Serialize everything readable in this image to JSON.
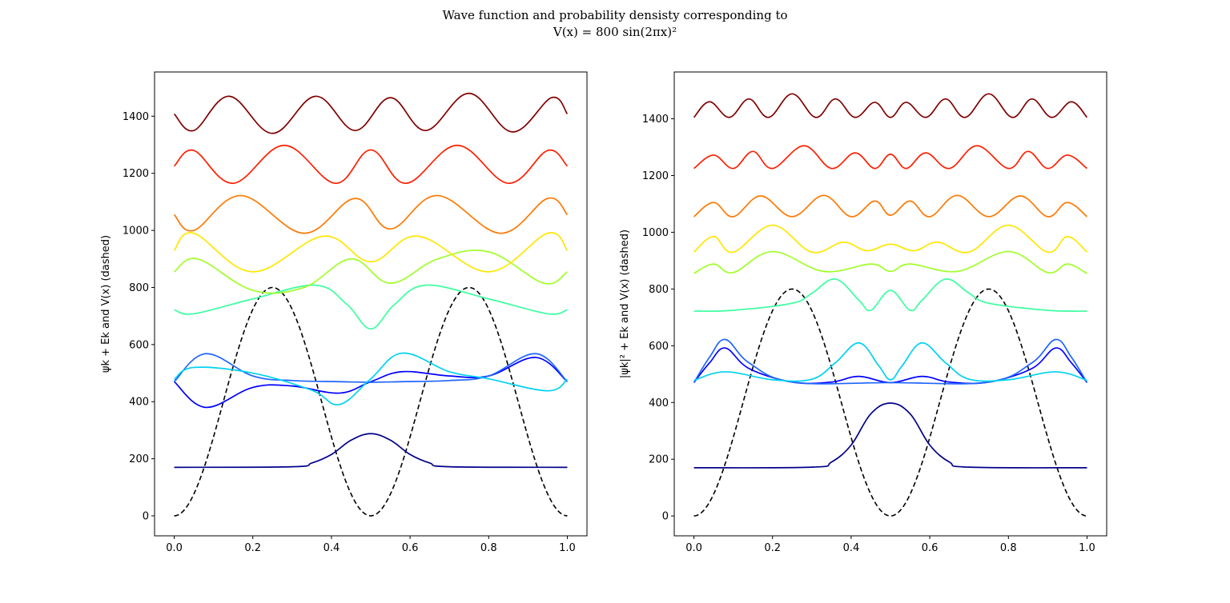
{
  "suptitle_line1": "Wave function and probability densisty corresponding to",
  "suptitle_line2": "V(x) = 800 sin(2πx)²",
  "chart_data": [
    {
      "type": "line",
      "ylabel": "ψk + Ek and V(x) (dashed)",
      "xlim": [
        -0.05,
        1.05
      ],
      "ylim": [
        -70,
        1555
      ],
      "xticks": [
        "0.0",
        "0.2",
        "0.4",
        "0.6",
        "0.8",
        "1.0"
      ],
      "yticks": [
        "0",
        "200",
        "400",
        "600",
        "800",
        "1000",
        "1200",
        "1400"
      ],
      "potential": {
        "style": "dashed",
        "color": "#000000",
        "amplitude": 800,
        "formula": "800*sin(2*pi*x)^2"
      },
      "series": [
        {
          "color": "#00008b",
          "x": [
            0.0,
            0.3,
            0.35,
            0.4,
            0.45,
            0.5,
            0.55,
            0.6,
            0.65,
            0.7,
            1.0
          ],
          "y": [
            170,
            172,
            185,
            215,
            265,
            288,
            265,
            215,
            185,
            172,
            170
          ]
        },
        {
          "color": "#0000ff",
          "x": [
            0.0,
            0.08,
            0.2,
            0.3,
            0.42,
            0.5,
            0.58,
            0.7,
            0.8,
            0.92,
            1.0
          ],
          "y": [
            470,
            380,
            450,
            455,
            430,
            470,
            505,
            490,
            490,
            555,
            470
          ]
        },
        {
          "color": "#1e64ff",
          "x": [
            0.0,
            0.08,
            0.2,
            0.3,
            0.42,
            0.5,
            0.58,
            0.7,
            0.8,
            0.92,
            1.0
          ],
          "y": [
            470,
            568,
            490,
            474,
            470,
            468,
            470,
            474,
            490,
            568,
            470
          ]
        },
        {
          "color": "#00d2f0",
          "x": [
            0.0,
            0.05,
            0.2,
            0.35,
            0.42,
            0.5,
            0.58,
            0.7,
            0.8,
            0.95,
            1.0
          ],
          "y": [
            478,
            520,
            500,
            440,
            390,
            480,
            570,
            505,
            480,
            438,
            478
          ]
        },
        {
          "color": "#3cffa0",
          "x": [
            0.0,
            0.05,
            0.2,
            0.36,
            0.44,
            0.5,
            0.56,
            0.64,
            0.8,
            0.95,
            1.0
          ],
          "y": [
            722,
            708,
            760,
            808,
            740,
            655,
            740,
            808,
            760,
            708,
            722
          ]
        },
        {
          "color": "#a0ff28",
          "x": [
            0.0,
            0.06,
            0.2,
            0.33,
            0.45,
            0.55,
            0.67,
            0.8,
            0.94,
            1.0
          ],
          "y": [
            855,
            900,
            790,
            800,
            900,
            815,
            900,
            925,
            815,
            855
          ]
        },
        {
          "color": "#ffe600",
          "x": [
            0.0,
            0.05,
            0.2,
            0.38,
            0.5,
            0.62,
            0.8,
            0.95,
            1.0
          ],
          "y": [
            930,
            990,
            855,
            980,
            890,
            980,
            855,
            990,
            930
          ]
        },
        {
          "color": "#ff7800",
          "x": [
            0.0,
            0.05,
            0.17,
            0.33,
            0.46,
            0.55,
            0.67,
            0.83,
            0.95,
            1.0
          ],
          "y": [
            1055,
            1000,
            1122,
            990,
            1112,
            1005,
            1122,
            990,
            1112,
            1055
          ]
        },
        {
          "color": "#ff1e00",
          "x": [
            0.0,
            0.05,
            0.15,
            0.28,
            0.41,
            0.5,
            0.59,
            0.72,
            0.85,
            0.95,
            1.0
          ],
          "y": [
            1225,
            1280,
            1165,
            1298,
            1165,
            1282,
            1165,
            1298,
            1165,
            1280,
            1225
          ]
        },
        {
          "color": "#800000",
          "x": [
            0.0,
            0.05,
            0.14,
            0.25,
            0.36,
            0.46,
            0.55,
            0.64,
            0.75,
            0.86,
            0.96,
            1.0
          ],
          "y": [
            1408,
            1350,
            1470,
            1340,
            1470,
            1350,
            1465,
            1350,
            1480,
            1345,
            1465,
            1408
          ]
        }
      ]
    },
    {
      "type": "line",
      "ylabel": "|ψk|² + Ek and V(x) (dashed)",
      "xlim": [
        -0.05,
        1.05
      ],
      "ylim": [
        -70,
        1565
      ],
      "xticks": [
        "0.0",
        "0.2",
        "0.4",
        "0.6",
        "0.8",
        "1.0"
      ],
      "yticks": [
        "0",
        "200",
        "400",
        "600",
        "800",
        "1000",
        "1200",
        "1400"
      ],
      "potential": {
        "style": "dashed",
        "color": "#000000",
        "amplitude": 800,
        "formula": "800*sin(2*pi*x)^2"
      },
      "series": [
        {
          "color": "#00008b",
          "x": [
            0.0,
            0.3,
            0.35,
            0.4,
            0.45,
            0.5,
            0.55,
            0.6,
            0.65,
            0.7,
            1.0
          ],
          "y": [
            170,
            172,
            190,
            250,
            360,
            398,
            360,
            250,
            190,
            172,
            170
          ]
        },
        {
          "color": "#0000ff",
          "x": [
            0.0,
            0.04,
            0.08,
            0.14,
            0.25,
            0.35,
            0.42,
            0.5,
            0.58,
            0.65,
            0.75,
            0.86,
            0.92,
            0.96,
            1.0
          ],
          "y": [
            470,
            540,
            592,
            520,
            472,
            472,
            492,
            470,
            492,
            472,
            472,
            520,
            592,
            540,
            470
          ]
        },
        {
          "color": "#1e64ff",
          "x": [
            0.0,
            0.04,
            0.08,
            0.14,
            0.25,
            0.5,
            0.75,
            0.86,
            0.92,
            0.96,
            1.0
          ],
          "y": [
            470,
            560,
            622,
            540,
            472,
            470,
            472,
            540,
            622,
            560,
            470
          ]
        },
        {
          "color": "#00d2f0",
          "x": [
            0.0,
            0.08,
            0.2,
            0.3,
            0.36,
            0.42,
            0.47,
            0.5,
            0.53,
            0.58,
            0.64,
            0.7,
            0.8,
            0.92,
            1.0
          ],
          "y": [
            478,
            508,
            480,
            482,
            540,
            610,
            530,
            480,
            530,
            610,
            540,
            482,
            480,
            508,
            478
          ]
        },
        {
          "color": "#3cffa0",
          "x": [
            0.0,
            0.1,
            0.25,
            0.3,
            0.36,
            0.42,
            0.45,
            0.5,
            0.55,
            0.58,
            0.64,
            0.7,
            0.75,
            0.9,
            1.0
          ],
          "y": [
            722,
            725,
            750,
            785,
            835,
            760,
            725,
            795,
            725,
            760,
            835,
            785,
            750,
            725,
            722
          ]
        },
        {
          "color": "#a0ff28",
          "x": [
            0.0,
            0.05,
            0.1,
            0.2,
            0.33,
            0.45,
            0.5,
            0.55,
            0.67,
            0.8,
            0.9,
            0.95,
            1.0
          ],
          "y": [
            855,
            888,
            858,
            932,
            862,
            888,
            862,
            888,
            862,
            932,
            858,
            888,
            855
          ]
        },
        {
          "color": "#ffe600",
          "x": [
            0.0,
            0.05,
            0.1,
            0.2,
            0.3,
            0.38,
            0.44,
            0.5,
            0.56,
            0.62,
            0.7,
            0.8,
            0.9,
            0.95,
            1.0
          ],
          "y": [
            930,
            985,
            930,
            1025,
            930,
            965,
            935,
            958,
            935,
            965,
            930,
            1025,
            930,
            985,
            930
          ]
        },
        {
          "color": "#ff7800",
          "x": [
            0.0,
            0.05,
            0.1,
            0.17,
            0.25,
            0.33,
            0.4,
            0.46,
            0.5,
            0.55,
            0.6,
            0.67,
            0.75,
            0.83,
            0.9,
            0.95,
            1.0
          ],
          "y": [
            1055,
            1105,
            1055,
            1128,
            1055,
            1130,
            1055,
            1110,
            1060,
            1110,
            1055,
            1130,
            1055,
            1128,
            1055,
            1105,
            1055
          ]
        },
        {
          "color": "#ff1e00",
          "x": [
            0.0,
            0.05,
            0.1,
            0.15,
            0.2,
            0.28,
            0.35,
            0.41,
            0.46,
            0.5,
            0.54,
            0.59,
            0.65,
            0.72,
            0.8,
            0.85,
            0.9,
            0.95,
            1.0
          ],
          "y": [
            1225,
            1272,
            1225,
            1285,
            1225,
            1305,
            1225,
            1280,
            1225,
            1275,
            1225,
            1280,
            1225,
            1305,
            1225,
            1285,
            1225,
            1272,
            1225
          ]
        },
        {
          "color": "#800000",
          "x": [
            0.0,
            0.04,
            0.09,
            0.14,
            0.19,
            0.25,
            0.31,
            0.36,
            0.41,
            0.46,
            0.5,
            0.54,
            0.59,
            0.64,
            0.69,
            0.75,
            0.81,
            0.86,
            0.91,
            0.96,
            1.0
          ],
          "y": [
            1405,
            1460,
            1405,
            1470,
            1405,
            1488,
            1405,
            1470,
            1405,
            1458,
            1405,
            1458,
            1405,
            1470,
            1405,
            1488,
            1405,
            1470,
            1405,
            1460,
            1405
          ]
        }
      ]
    }
  ]
}
